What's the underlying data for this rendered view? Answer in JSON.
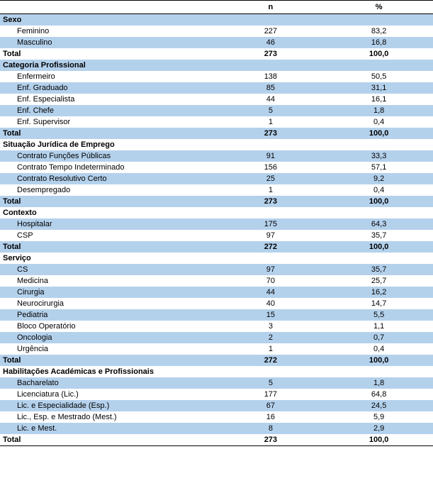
{
  "columns": {
    "n_label": "n",
    "p_label": "%"
  },
  "colors": {
    "stripe": "#b4d1ec",
    "text": "#000000",
    "background": "#ffffff",
    "border": "#000000"
  },
  "typography": {
    "font_family": "Verdana, Geneva, Tahoma, sans-serif",
    "font_size_pt": 8,
    "header_weight": "bold"
  },
  "sections": [
    {
      "title": "Sexo",
      "title_striped": true,
      "rows": [
        {
          "label": "Feminino",
          "n": "227",
          "p": "83,2",
          "striped": false
        },
        {
          "label": "Masculino",
          "n": "46",
          "p": "16,8",
          "striped": true
        }
      ],
      "total": {
        "label": "Total",
        "n": "273",
        "p": "100,0",
        "striped": false
      }
    },
    {
      "title": "Categoria Profissional",
      "title_striped": true,
      "rows": [
        {
          "label": "Enfermeiro",
          "n": "138",
          "p": "50,5",
          "striped": false
        },
        {
          "label": "Enf. Graduado",
          "n": "85",
          "p": "31,1",
          "striped": true
        },
        {
          "label": "Enf. Especialista",
          "n": "44",
          "p": "16,1",
          "striped": false
        },
        {
          "label": "Enf. Chefe",
          "n": "5",
          "p": "1,8",
          "striped": true
        },
        {
          "label": "Enf. Supervisor",
          "n": "1",
          "p": "0,4",
          "striped": false
        }
      ],
      "total": {
        "label": "Total",
        "n": "273",
        "p": "100,0",
        "striped": true
      }
    },
    {
      "title": "Situação Jurídica de Emprego",
      "title_striped": false,
      "rows": [
        {
          "label": "Contrato Funções Públicas",
          "n": "91",
          "p": "33,3",
          "striped": true
        },
        {
          "label": "Contrato Tempo Indeterminado",
          "n": "156",
          "p": "57,1",
          "striped": false
        },
        {
          "label": "Contrato Resolutivo Certo",
          "n": "25",
          "p": "9,2",
          "striped": true
        },
        {
          "label": "Desempregado",
          "n": "1",
          "p": "0,4",
          "striped": false
        }
      ],
      "total": {
        "label": "Total",
        "n": "273",
        "p": "100,0",
        "striped": true
      }
    },
    {
      "title": "Contexto",
      "title_striped": false,
      "rows": [
        {
          "label": "Hospitalar",
          "n": "175",
          "p": "64,3",
          "striped": true
        },
        {
          "label": "CSP",
          "n": "97",
          "p": "35,7",
          "striped": false
        }
      ],
      "total": {
        "label": "Total",
        "n": "272",
        "p": "100,0",
        "striped": true
      }
    },
    {
      "title": "Serviço",
      "title_striped": false,
      "rows": [
        {
          "label": "CS",
          "n": "97",
          "p": "35,7",
          "striped": true
        },
        {
          "label": "Medicina",
          "n": "70",
          "p": "25,7",
          "striped": false
        },
        {
          "label": "Cirurgia",
          "n": "44",
          "p": "16,2",
          "striped": true
        },
        {
          "label": "Neurocirurgia",
          "n": "40",
          "p": "14,7",
          "striped": false
        },
        {
          "label": "Pediatria",
          "n": "15",
          "p": "5,5",
          "striped": true
        },
        {
          "label": "Bloco Operatório",
          "n": "3",
          "p": "1,1",
          "striped": false
        },
        {
          "label": "Oncologia",
          "n": "2",
          "p": "0,7",
          "striped": true
        },
        {
          "label": "Urgência",
          "n": "1",
          "p": "0,4",
          "striped": false
        }
      ],
      "total": {
        "label": "Total",
        "n": "272",
        "p": "100,0",
        "striped": true
      }
    },
    {
      "title": "Habilitações Académicas e Profissionais",
      "title_striped": false,
      "rows": [
        {
          "label": "Bacharelato",
          "n": "5",
          "p": "1,8",
          "striped": true
        },
        {
          "label": "Licenciatura (Lic.)",
          "n": "177",
          "p": "64,8",
          "striped": false
        },
        {
          "label": "Lic. e Especialidade (Esp.)",
          "n": "67",
          "p": "24,5",
          "striped": true
        },
        {
          "label": "Lic., Esp. e Mestrado (Mest.)",
          "n": "16",
          "p": "5,9",
          "striped": false
        },
        {
          "label": "Lic. e Mest.",
          "n": "8",
          "p": "2,9",
          "striped": true
        }
      ],
      "total": {
        "label": "Total",
        "n": "273",
        "p": "100,0",
        "striped": false,
        "last": true
      }
    }
  ]
}
